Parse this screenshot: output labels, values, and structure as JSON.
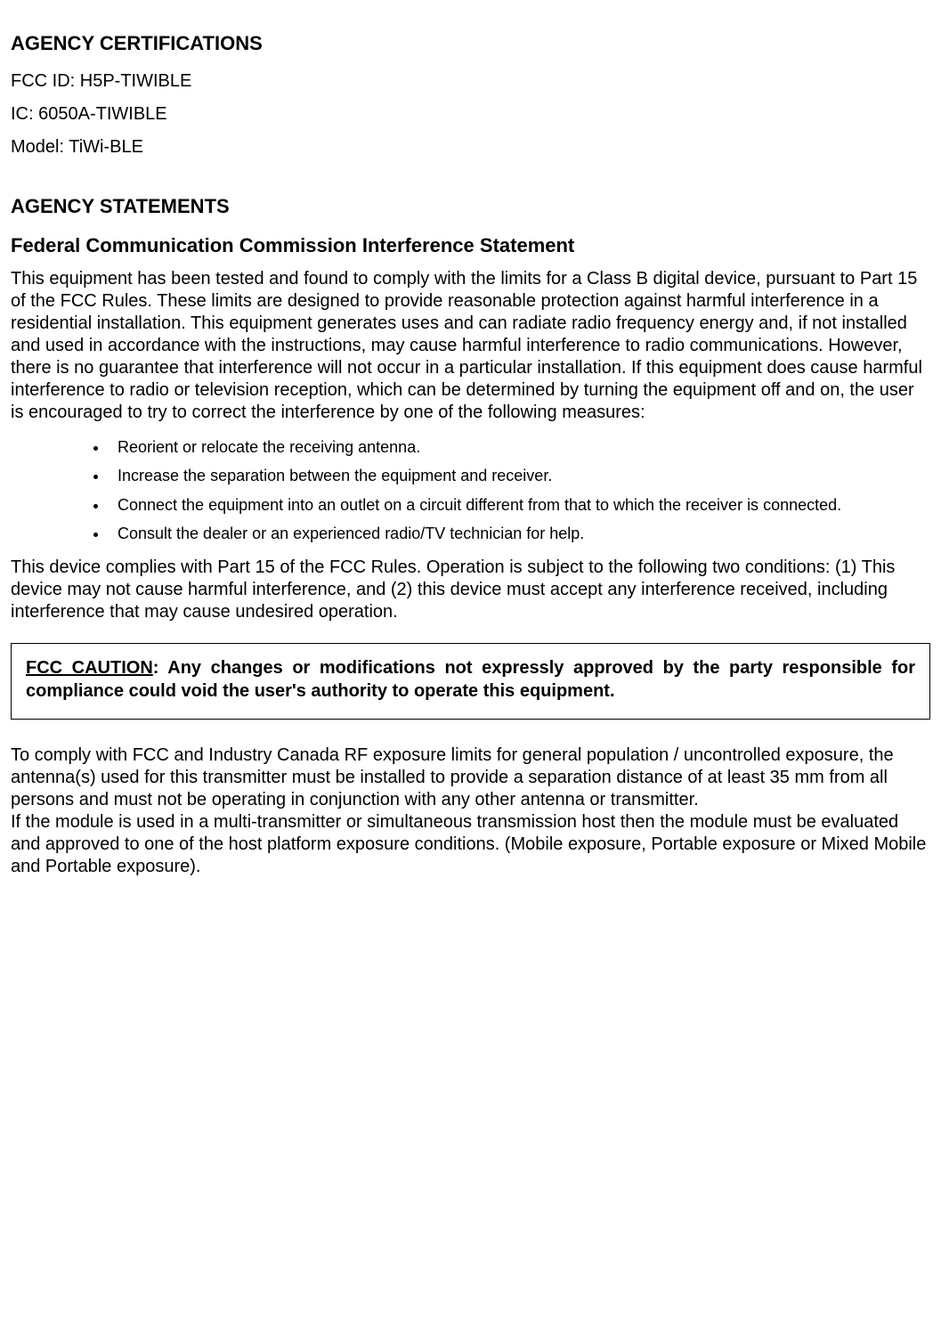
{
  "colors": {
    "text": "#000000",
    "background": "#ffffff",
    "border": "#000000"
  },
  "typography": {
    "font_family": "Arial, Helvetica, sans-serif",
    "heading_size_pt": 16,
    "subheading_size_pt": 16,
    "body_size_pt": 15,
    "list_size_pt": 13
  },
  "sections": {
    "certifications": {
      "title": "AGENCY CERTIFICATIONS",
      "fcc_id": "FCC ID: H5P-TIWIBLE",
      "ic": "IC: 6050A-TIWIBLE",
      "model": "Model: TiWi-BLE"
    },
    "statements": {
      "title": "AGENCY STATEMENTS",
      "fcc_statement_title": "Federal Communication Commission Interference Statement",
      "para1": "This equipment has been tested and found to comply with the limits for a Class B digital device, pursuant to Part 15 of the FCC Rules. These limits are designed to provide reasonable protection against harmful interference in a residential installation. This equipment generates uses and can radiate radio frequency energy and, if not installed and used in accordance with the instructions, may cause harmful interference to radio communications. However, there is no guarantee that interference will not occur in a particular installation. If this equipment does cause harmful interference to radio or television reception, which can be determined by turning the equipment off and on, the user is encouraged to try to correct the interference by one of the following measures:",
      "measures": [
        "Reorient or relocate the receiving antenna.",
        "Increase the separation between the equipment and receiver.",
        "Connect the equipment into an outlet on a circuit different from that to which the receiver is connected.",
        "Consult the dealer or an experienced radio/TV technician for help."
      ],
      "para2": "This device complies with Part 15 of the FCC Rules. Operation is subject to the following two conditions: (1) This device may not cause harmful interference, and (2) this device must accept any interference received, including interference that may cause undesired operation.",
      "caution": {
        "lead": "FCC CAUTION",
        "rest": ": Any changes or modifications not expressly approved by the party responsible for compliance could void the user's authority to operate this equipment."
      },
      "para3": "To comply with FCC and Industry Canada RF exposure limits for general population / uncontrolled exposure, the antenna(s) used for this transmitter must be installed to provide a separation distance of at least 35 mm from all persons and must not be operating in conjunction with any other antenna or transmitter.",
      "para4": "If the module is used in a multi-transmitter or simultaneous transmission host then the module must be evaluated and approved to one of the host platform exposure conditions. (Mobile exposure, Portable exposure or Mixed Mobile and Portable exposure)."
    }
  }
}
